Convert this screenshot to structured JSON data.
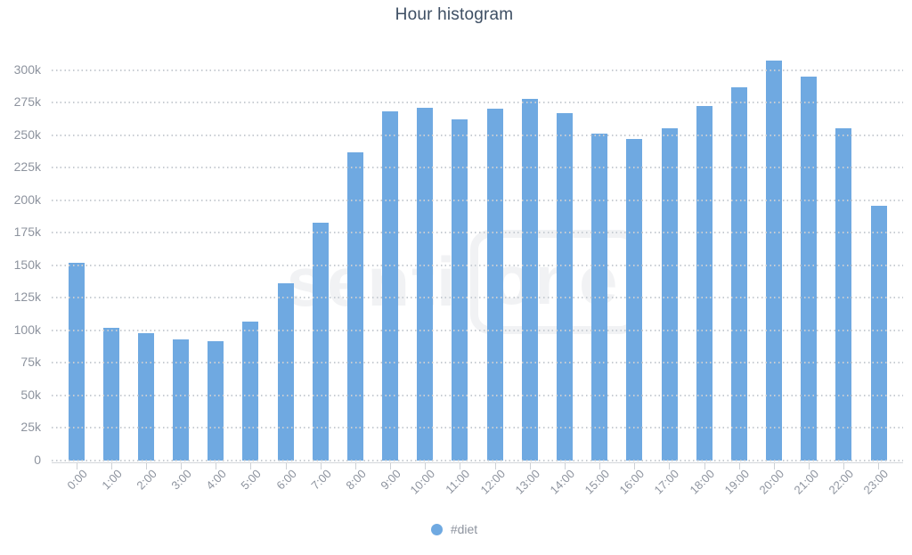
{
  "title": "Hour histogram",
  "watermark": {
    "part1": "senti",
    "part2": "one"
  },
  "legend": {
    "items": [
      {
        "label": "#diet",
        "color": "#6fa9e1"
      }
    ]
  },
  "colors": {
    "bar": "#6fa9e1",
    "title": "#3d4e63",
    "axis_text": "#8d939e",
    "grid_dots": "#c8cdd3",
    "axis_line": "#d3d6da",
    "watermark": "#f1f2f4"
  },
  "chart_data": {
    "type": "bar",
    "title": "Hour histogram",
    "categories": [
      "0:00",
      "1:00",
      "2:00",
      "3:00",
      "4:00",
      "5:00",
      "6:00",
      "7:00",
      "8:00",
      "9:00",
      "10:00",
      "11:00",
      "12:00",
      "13:00",
      "14:00",
      "15:00",
      "16:00",
      "17:00",
      "18:00",
      "19:00",
      "20:00",
      "21:00",
      "22:00",
      "23:00"
    ],
    "series": [
      {
        "name": "#diet",
        "color": "#6fa9e1",
        "values": [
          152000,
          102000,
          98000,
          93000,
          92000,
          107000,
          136000,
          183000,
          237000,
          268000,
          271000,
          262000,
          270000,
          278000,
          267000,
          251000,
          247000,
          255000,
          272000,
          287000,
          307000,
          295000,
          255000,
          196000
        ]
      }
    ],
    "xlabel": "",
    "ylabel": "",
    "ylim": [
      0,
      325000
    ],
    "ytick_values": [
      0,
      25000,
      50000,
      75000,
      100000,
      125000,
      150000,
      175000,
      200000,
      225000,
      250000,
      275000,
      300000
    ],
    "ytick_labels": [
      "0",
      "25k",
      "50k",
      "75k",
      "100k",
      "125k",
      "150k",
      "175k",
      "200k",
      "225k",
      "250k",
      "275k",
      "300k"
    ],
    "grid": "dotted horizontal, drawn above bars",
    "legend_position": "bottom-center",
    "x_label_rotation": -45
  }
}
